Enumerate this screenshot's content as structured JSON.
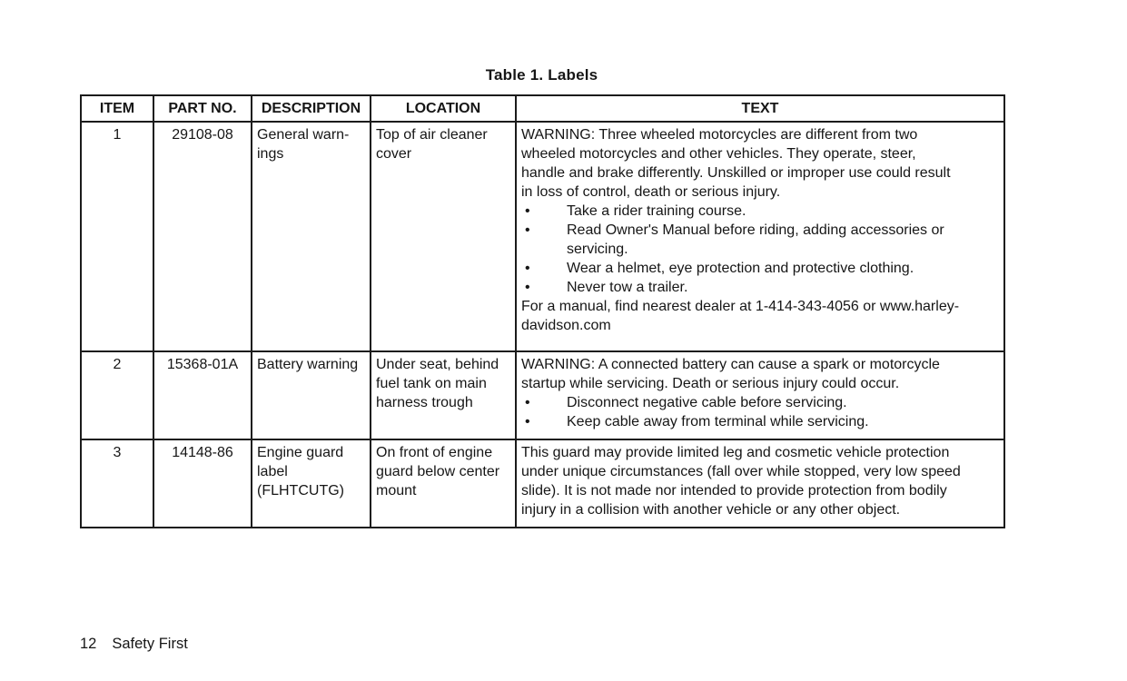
{
  "page": {
    "title": "Table 1. Labels",
    "footer": {
      "page_number": "12",
      "section_title": "Safety First"
    }
  },
  "table": {
    "headers": [
      "ITEM",
      "PART NO.",
      "DESCRIPTION",
      "LOCATION",
      "TEXT"
    ],
    "rows": [
      {
        "item": "1",
        "part_no": "29108-08",
        "description": "General warn-\nings",
        "location": "Top of air cleaner\ncover",
        "text": {
          "intro": "WARNING: Three wheeled motorcycles are different from two\nwheeled motorcycles and other vehicles. They operate, steer,\nhandle and brake differently. Unskilled or improper use could result\nin loss of control, death or serious injury.",
          "bullets": [
            "Take a rider training course.",
            "Read Owner's Manual before riding, adding accessories or\nservicing.",
            "Wear a helmet, eye protection and protective clothing.",
            "Never tow a trailer."
          ],
          "footer": "For a manual, find nearest dealer at 1-414-343-4056 or www.harley-\ndavidson.com"
        }
      },
      {
        "item": "2",
        "part_no": "15368-01A",
        "description": "Battery warning",
        "location": "Under seat, behind\nfuel tank on main\nharness trough",
        "text": {
          "intro": "WARNING: A connected battery can cause a spark or motorcycle\nstartup while servicing. Death or serious injury could occur.",
          "bullets": [
            "Disconnect negative cable before servicing.",
            "Keep cable away from terminal while servicing."
          ]
        }
      },
      {
        "item": "3",
        "part_no": "14148-86",
        "description": "Engine guard\nlabel\n(FLHTCUTG)",
        "location": "On front of engine\nguard below center\nmount",
        "text": {
          "intro": "This guard may provide limited leg and cosmetic vehicle protection\nunder unique circumstances (fall over while stopped, very low speed\nslide). It is not made nor intended to provide protection from bodily\ninjury in a collision with another vehicle or any other object."
        }
      }
    ]
  }
}
